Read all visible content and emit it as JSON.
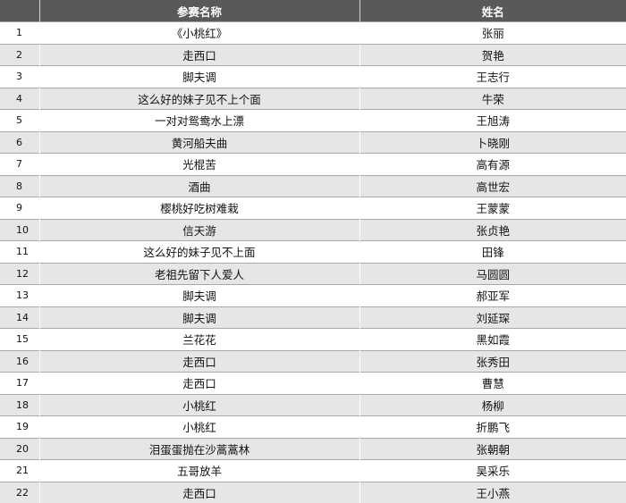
{
  "table": {
    "headers": [
      "",
      "参赛名称",
      "姓名"
    ],
    "rows": [
      [
        "1",
        "《小桃红》",
        "张丽"
      ],
      [
        "2",
        "走西口",
        "贺艳"
      ],
      [
        "3",
        "脚夫调",
        "王志行"
      ],
      [
        "4",
        "这么好的妹子见不上个面",
        "牛荣"
      ],
      [
        "5",
        "一对对鸳鸯水上漂",
        "王旭涛"
      ],
      [
        "6",
        "黄河船夫曲",
        "卜晓刚"
      ],
      [
        "7",
        "光棍苦",
        "高有源"
      ],
      [
        "8",
        "酒曲",
        "高世宏"
      ],
      [
        "9",
        "樱桃好吃树难栽",
        "王蒙蒙"
      ],
      [
        "10",
        "信天游",
        "张贞艳"
      ],
      [
        "11",
        "这么好的妹子见不上面",
        "田锋"
      ],
      [
        "12",
        "老祖先留下人爱人",
        "马圆圆"
      ],
      [
        "13",
        "脚夫调",
        "郝亚军"
      ],
      [
        "14",
        "脚夫调",
        "刘延琛"
      ],
      [
        "15",
        "兰花花",
        "黑如霞"
      ],
      [
        "16",
        "走西口",
        "张秀田"
      ],
      [
        "17",
        "走西口",
        "曹慧"
      ],
      [
        "18",
        "小桃红",
        "杨柳"
      ],
      [
        "19",
        "小桃红",
        "折鹏飞"
      ],
      [
        "20",
        "泪蛋蛋抛在沙蒿蒿林",
        "张朝朝"
      ],
      [
        "21",
        "五哥放羊",
        "吴采乐"
      ],
      [
        "22",
        "走西口",
        "王小燕"
      ]
    ]
  },
  "colors": {
    "header_bg": "#595959",
    "stripe_bg": "#e6e6e6"
  }
}
